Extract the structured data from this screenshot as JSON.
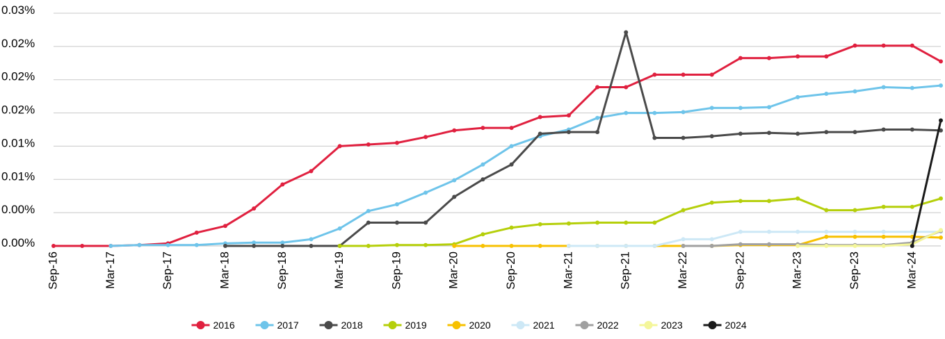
{
  "chart_data": {
    "type": "line",
    "categories": [
      "Sep-16",
      null,
      "Mar-17",
      null,
      "Sep-17",
      null,
      "Mar-18",
      null,
      "Sep-18",
      null,
      "Mar-19",
      null,
      "Sep-19",
      null,
      "Mar-20",
      null,
      "Sep-20",
      null,
      "Mar-21",
      null,
      "Sep-21",
      null,
      "Mar-22",
      null,
      "Sep-22",
      null,
      "Mar-23",
      null,
      "Sep-23",
      null,
      "Mar-24",
      null
    ],
    "ylim": [
      0,
      0.028
    ],
    "yticks": [
      {
        "value": 0,
        "label": "0.00%"
      },
      {
        "value": 0.004,
        "label": "0.00%"
      },
      {
        "value": 0.008,
        "label": "0.01%"
      },
      {
        "value": 0.012,
        "label": "0.01%"
      },
      {
        "value": 0.016,
        "label": "0.02%"
      },
      {
        "value": 0.02,
        "label": "0.02%"
      },
      {
        "value": 0.024,
        "label": "0.02%"
      },
      {
        "value": 0.028,
        "label": "0.03%"
      }
    ],
    "grid": true,
    "legend": "bottom",
    "series": [
      {
        "name": "2016",
        "color": "#e0203f",
        "values": [
          0,
          0,
          0,
          0.0001,
          0.0003,
          0.0016,
          0.0024,
          0.0045,
          0.0074,
          0.009,
          0.012,
          0.0122,
          0.0124,
          0.0131,
          0.0139,
          0.0142,
          0.0142,
          0.0155,
          0.0157,
          0.0191,
          0.0191,
          0.0206,
          0.0206,
          0.0206,
          0.0226,
          0.0226,
          0.0228,
          0.0228,
          0.0241,
          0.0241,
          0.0241,
          0.0222
        ]
      },
      {
        "name": "2017",
        "color": "#6ec4ea",
        "values": [
          null,
          null,
          0,
          0.0001,
          0.0001,
          0.0001,
          0.0003,
          0.0004,
          0.0004,
          0.0008,
          0.0021,
          0.0042,
          0.005,
          0.0064,
          0.0079,
          0.0098,
          0.012,
          0.0132,
          0.014,
          0.0154,
          0.016,
          0.016,
          0.0161,
          0.0166,
          0.0166,
          0.0167,
          0.0179,
          0.0183,
          0.0186,
          0.0191,
          0.019,
          0.0193
        ]
      },
      {
        "name": "2018",
        "color": "#4a4a4a",
        "values": [
          null,
          null,
          null,
          null,
          null,
          null,
          0,
          0,
          0,
          0,
          0,
          0.0028,
          0.0028,
          0.0028,
          0.0059,
          0.008,
          0.0098,
          0.0135,
          0.0137,
          0.0137,
          0.0257,
          0.013,
          0.013,
          0.0132,
          0.0135,
          0.0136,
          0.0135,
          0.0137,
          0.0137,
          0.014,
          0.014,
          0.0139
        ]
      },
      {
        "name": "2019",
        "color": "#b5cf0a",
        "values": [
          null,
          null,
          null,
          null,
          null,
          null,
          null,
          null,
          null,
          null,
          0,
          0,
          0.0001,
          0.0001,
          0.0002,
          0.0014,
          0.0022,
          0.0026,
          0.0027,
          0.0028,
          0.0028,
          0.0028,
          0.0043,
          0.0052,
          0.0054,
          0.0054,
          0.0057,
          0.0043,
          0.0043,
          0.0047,
          0.0047,
          0.0057
        ]
      },
      {
        "name": "2020",
        "color": "#f7c100",
        "values": [
          null,
          null,
          null,
          null,
          null,
          null,
          null,
          null,
          null,
          null,
          null,
          null,
          null,
          null,
          0,
          0,
          0,
          0,
          0,
          0,
          0,
          0,
          0,
          0,
          0.0001,
          0.0001,
          0.0001,
          0.0011,
          0.0011,
          0.0011,
          0.0011,
          0.001
        ]
      },
      {
        "name": "2021",
        "color": "#cde8f6",
        "values": [
          null,
          null,
          null,
          null,
          null,
          null,
          null,
          null,
          null,
          null,
          null,
          null,
          null,
          null,
          null,
          null,
          null,
          null,
          0,
          0,
          0,
          0,
          0.0008,
          0.0008,
          0.0017,
          0.0017,
          0.0017,
          0.0017,
          0.0017,
          0.0017,
          0.0017,
          0.0017
        ]
      },
      {
        "name": "2022",
        "color": "#a0a0a0",
        "values": [
          null,
          null,
          null,
          null,
          null,
          null,
          null,
          null,
          null,
          null,
          null,
          null,
          null,
          null,
          null,
          null,
          null,
          null,
          null,
          null,
          null,
          null,
          0,
          0,
          0.0002,
          0.0002,
          0.0002,
          0.0001,
          0.0001,
          0.0001,
          0.0004,
          0.0018
        ]
      },
      {
        "name": "2023",
        "color": "#f4f69a",
        "values": [
          null,
          null,
          null,
          null,
          null,
          null,
          null,
          null,
          null,
          null,
          null,
          null,
          null,
          null,
          null,
          null,
          null,
          null,
          null,
          null,
          null,
          null,
          null,
          null,
          null,
          null,
          0,
          0,
          0,
          0,
          0.0002,
          0.0019
        ]
      },
      {
        "name": "2024",
        "color": "#1a1a1a",
        "values": [
          null,
          null,
          null,
          null,
          null,
          null,
          null,
          null,
          null,
          null,
          null,
          null,
          null,
          null,
          null,
          null,
          null,
          null,
          null,
          null,
          null,
          null,
          null,
          null,
          null,
          null,
          null,
          null,
          null,
          null,
          0,
          0.0151
        ]
      }
    ]
  }
}
